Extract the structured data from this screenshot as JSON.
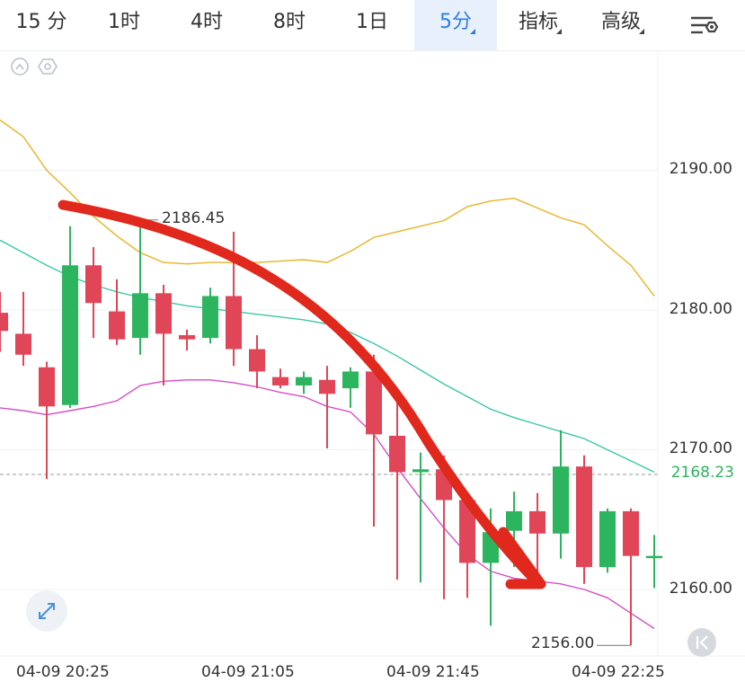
{
  "toolbar": {
    "tabs": [
      {
        "label": "15 分"
      },
      {
        "label": "1时"
      },
      {
        "label": "4时"
      },
      {
        "label": "8时"
      },
      {
        "label": "1日"
      },
      {
        "label": "5分",
        "active": true
      },
      {
        "label": "指标"
      },
      {
        "label": "高级"
      }
    ],
    "settings_icon": "chart-settings-icon"
  },
  "chart_icons": [
    "collapse-up-icon",
    "hexagon-settings-icon",
    "expand-icon",
    "scroll-to-latest-icon"
  ],
  "colors": {
    "up": "#2db45e",
    "down": "#e04658",
    "ma_yellow": "#e6b422",
    "ma_teal": "#3cc7a8",
    "ma_magenta": "#d44fc3",
    "arrow": "#e0281c",
    "current_price": "#2db45e",
    "active_tab": "#2f7de1"
  },
  "chart_data": {
    "type": "candlestick",
    "interval": "5分",
    "ylim": [
      2154,
      2195
    ],
    "y_ticks": [
      "2190.00",
      "2180.00",
      "2170.00",
      "2160.00"
    ],
    "x_ticks": [
      "04-09 20:25",
      "04-09 21:05",
      "04-09 21:45",
      "04-09 22:25"
    ],
    "current_price": "2168.23",
    "high_annotation": "2186.45",
    "low_annotation": "2156.00",
    "candles": [
      {
        "o": 2179.8,
        "c": 2178.5,
        "h": 2181.3,
        "l": 2177.0
      },
      {
        "o": 2178.3,
        "c": 2176.8,
        "h": 2181.3,
        "l": 2176.0
      },
      {
        "o": 2175.9,
        "c": 2173.1,
        "h": 2176.3,
        "l": 2167.9
      },
      {
        "o": 2173.2,
        "c": 2183.2,
        "h": 2186.0,
        "l": 2173.0
      },
      {
        "o": 2183.2,
        "c": 2180.5,
        "h": 2184.5,
        "l": 2178.0
      },
      {
        "o": 2179.9,
        "c": 2177.9,
        "h": 2182.2,
        "l": 2177.5
      },
      {
        "o": 2178.0,
        "c": 2181.2,
        "h": 2186.45,
        "l": 2176.8
      },
      {
        "o": 2181.2,
        "c": 2178.3,
        "h": 2181.8,
        "l": 2174.6
      },
      {
        "o": 2178.2,
        "c": 2177.9,
        "h": 2178.6,
        "l": 2177.1
      },
      {
        "o": 2178.0,
        "c": 2181.0,
        "h": 2181.6,
        "l": 2177.6
      },
      {
        "o": 2181.0,
        "c": 2177.2,
        "h": 2185.6,
        "l": 2176.0
      },
      {
        "o": 2177.2,
        "c": 2175.6,
        "h": 2178.2,
        "l": 2174.4
      },
      {
        "o": 2175.2,
        "c": 2174.6,
        "h": 2175.8,
        "l": 2174.4
      },
      {
        "o": 2174.6,
        "c": 2175.2,
        "h": 2175.6,
        "l": 2174.0
      },
      {
        "o": 2175.0,
        "c": 2174.0,
        "h": 2176.0,
        "l": 2170.1
      },
      {
        "o": 2174.4,
        "c": 2175.6,
        "h": 2175.9,
        "l": 2173.0
      },
      {
        "o": 2175.6,
        "c": 2171.1,
        "h": 2176.8,
        "l": 2164.5
      },
      {
        "o": 2171.0,
        "c": 2168.4,
        "h": 2173.4,
        "l": 2160.7
      },
      {
        "o": 2168.4,
        "c": 2168.6,
        "h": 2169.8,
        "l": 2160.5
      },
      {
        "o": 2168.6,
        "c": 2166.4,
        "h": 2169.6,
        "l": 2159.3
      },
      {
        "o": 2166.4,
        "c": 2161.9,
        "h": 2166.8,
        "l": 2159.4
      },
      {
        "o": 2161.9,
        "c": 2164.1,
        "h": 2165.8,
        "l": 2157.4
      },
      {
        "o": 2164.2,
        "c": 2165.6,
        "h": 2167.0,
        "l": 2161.6
      },
      {
        "o": 2165.6,
        "c": 2164.0,
        "h": 2166.9,
        "l": 2160.8
      },
      {
        "o": 2164.0,
        "c": 2168.8,
        "h": 2171.4,
        "l": 2162.2
      },
      {
        "o": 2168.8,
        "c": 2161.6,
        "h": 2169.6,
        "l": 2160.4
      },
      {
        "o": 2161.6,
        "c": 2165.6,
        "h": 2165.8,
        "l": 2161.2
      },
      {
        "o": 2165.6,
        "c": 2162.4,
        "h": 2165.8,
        "l": 2156.0
      },
      {
        "o": 2162.4,
        "c": 2162.4,
        "h": 2163.9,
        "l": 2160.1
      }
    ],
    "series": [
      {
        "values": [
          2193.6,
          2192.4,
          2190.0,
          2188.4,
          2186.7,
          2185.3,
          2184.1,
          2183.4,
          2183.3,
          2183.4,
          2183.4,
          2183.4,
          2183.5,
          2183.6,
          2183.4,
          2184.2,
          2185.2,
          2185.6,
          2186.0,
          2186.4,
          2187.4,
          2187.8,
          2188.0,
          2187.3,
          2186.6,
          2186.1,
          2184.6,
          2183.2,
          2181.0
        ]
      },
      {
        "values": [
          2185.0,
          2184.1,
          2183.2,
          2182.4,
          2181.8,
          2181.3,
          2180.9,
          2180.6,
          2180.3,
          2180.1,
          2179.9,
          2179.7,
          2179.5,
          2179.3,
          2179.0,
          2178.4,
          2177.6,
          2176.7,
          2175.7,
          2174.7,
          2173.8,
          2172.9,
          2172.3,
          2171.8,
          2171.3,
          2170.8,
          2170.0,
          2169.2,
          2168.4
        ]
      },
      {
        "values": [
          2173.0,
          2172.8,
          2172.5,
          2172.8,
          2173.1,
          2173.5,
          2174.6,
          2174.9,
          2175.0,
          2175.0,
          2174.8,
          2174.5,
          2174.1,
          2173.8,
          2173.1,
          2172.7,
          2171.1,
          2168.7,
          2166.5,
          2164.4,
          2162.5,
          2161.3,
          2160.8,
          2160.6,
          2160.4,
          2160.0,
          2159.4,
          2158.3,
          2157.2
        ]
      }
    ]
  }
}
